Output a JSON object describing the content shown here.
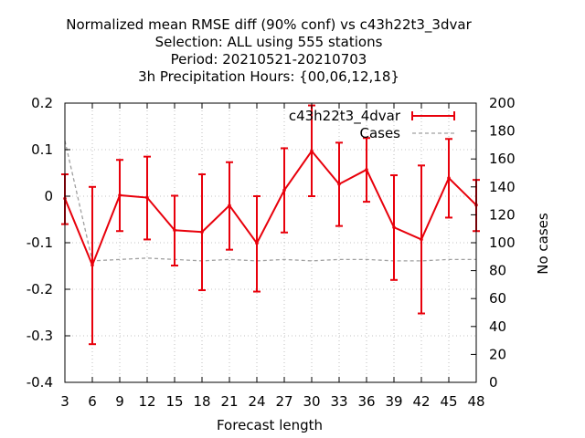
{
  "chart_data": {
    "type": "line",
    "title": [
      "Normalized mean RMSE diff (90% conf) vs c43h22t3_3dvar",
      "Selection: ALL using   555 stations",
      "Period: 20210521-20210703",
      "3h Precipitation   Hours: {00,06,12,18}"
    ],
    "xlabel": "Forecast length",
    "ylabel": "",
    "y2label": "No cases",
    "xlim": [
      3,
      48
    ],
    "ylim": [
      -0.4,
      0.2
    ],
    "y2lim": [
      0,
      200
    ],
    "x": [
      3,
      6,
      9,
      12,
      15,
      18,
      21,
      24,
      27,
      30,
      33,
      36,
      39,
      42,
      45,
      48
    ],
    "xticks": [
      "3",
      "6",
      "9",
      "12",
      "15",
      "18",
      "21",
      "24",
      "27",
      "30",
      "33",
      "36",
      "39",
      "42",
      "45",
      "48"
    ],
    "yticks": [
      "0.2",
      "0.1",
      "0",
      "-0.1",
      "-0.2",
      "-0.3",
      "-0.4"
    ],
    "y2ticks": [
      "200",
      "180",
      "160",
      "140",
      "120",
      "100",
      "80",
      "60",
      "40",
      "20",
      "0"
    ],
    "grid": true,
    "legend_position": "top-right",
    "series": [
      {
        "name": "c43h22t3_4dvar",
        "color": "#e8000b",
        "axis": "left",
        "style": "line-errorbars",
        "values": [
          -0.005,
          -0.148,
          0.002,
          -0.003,
          -0.073,
          -0.077,
          -0.02,
          -0.101,
          0.013,
          0.097,
          0.026,
          0.057,
          -0.067,
          -0.093,
          0.039,
          -0.019
        ],
        "err_low": [
          -0.06,
          -0.318,
          -0.075,
          -0.093,
          -0.149,
          -0.202,
          -0.115,
          -0.205,
          -0.078,
          0.0,
          -0.064,
          -0.012,
          -0.18,
          -0.252,
          -0.046,
          -0.075
        ],
        "err_high": [
          0.047,
          0.02,
          0.078,
          0.085,
          0.001,
          0.047,
          0.073,
          0.0,
          0.103,
          0.195,
          0.115,
          0.125,
          0.045,
          0.066,
          0.123,
          0.035
        ]
      },
      {
        "name": "Cases",
        "color": "#a0a0a0",
        "axis": "right",
        "style": "dashed",
        "values": [
          173,
          87,
          88,
          89,
          88,
          87,
          88,
          87,
          88,
          87,
          88,
          88,
          87,
          87,
          88,
          88
        ]
      }
    ]
  }
}
